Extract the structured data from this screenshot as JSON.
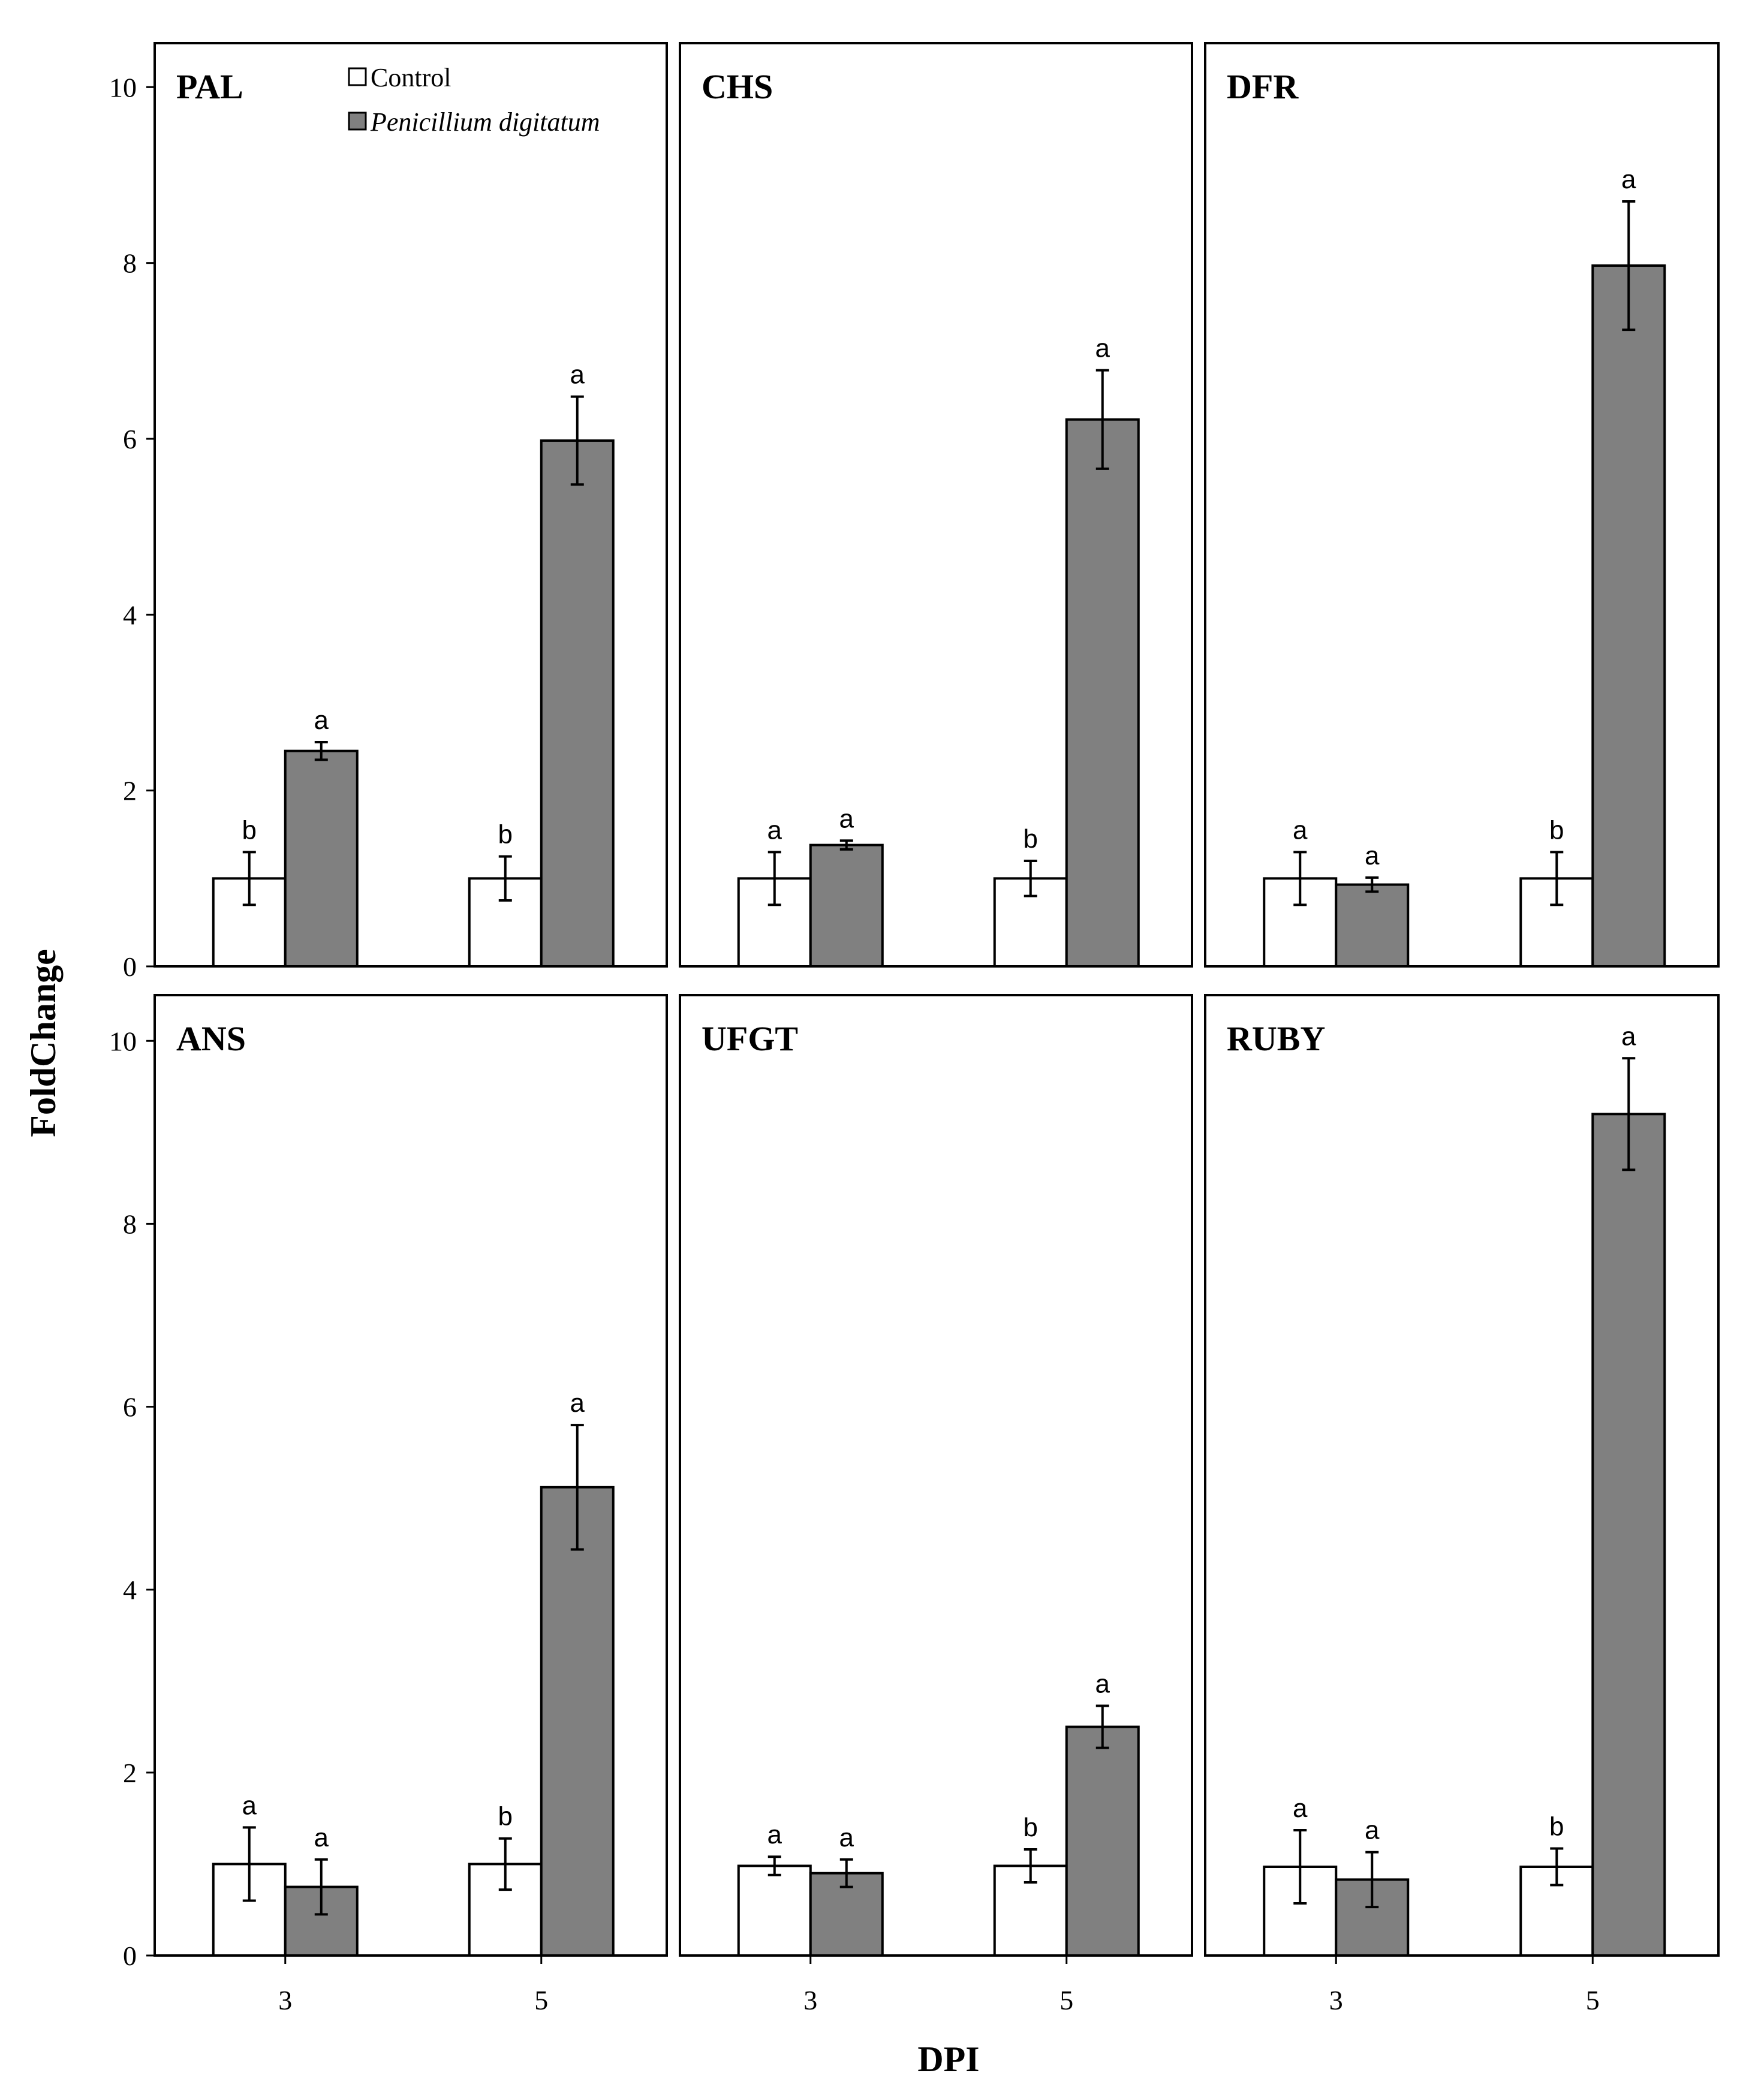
{
  "chart_data": {
    "type": "bar",
    "ylabel": "FoldChange",
    "xlabel": "DPI",
    "ylim": [
      0,
      10.5
    ],
    "yticks": [
      "0",
      "2",
      "4",
      "6",
      "8",
      "10"
    ],
    "categories": [
      "3",
      "5"
    ],
    "legend": {
      "position": "top-right of first panel",
      "entries": [
        {
          "label": "Control",
          "color": "#ffffff",
          "italic": false
        },
        {
          "label": "Penicillium digitatum",
          "color": "#808080",
          "italic": true
        }
      ]
    },
    "colors": {
      "control": "#ffffff",
      "treatment": "#808080",
      "stroke": "#000000"
    },
    "panels": [
      {
        "name": "PAL",
        "control": [
          1.0,
          1.0
        ],
        "control_err": [
          0.3,
          0.25
        ],
        "control_sig": [
          "b",
          "b"
        ],
        "treatment": [
          2.45,
          5.98
        ],
        "treatment_err": [
          0.1,
          0.5
        ],
        "treatment_sig": [
          "a",
          "a"
        ]
      },
      {
        "name": "CHS",
        "control": [
          1.0,
          1.0
        ],
        "control_err": [
          0.3,
          0.2
        ],
        "control_sig": [
          "a",
          "b"
        ],
        "treatment": [
          1.38,
          6.22
        ],
        "treatment_err": [
          0.05,
          0.56
        ],
        "treatment_sig": [
          "a",
          "a"
        ]
      },
      {
        "name": "DFR",
        "control": [
          1.0,
          1.0
        ],
        "control_err": [
          0.3,
          0.3
        ],
        "control_sig": [
          "a",
          "b"
        ],
        "treatment": [
          0.93,
          7.97
        ],
        "treatment_err": [
          0.08,
          0.73
        ],
        "treatment_sig": [
          "a",
          "a"
        ]
      },
      {
        "name": "ANS",
        "control": [
          1.0,
          1.0
        ],
        "control_err": [
          0.4,
          0.28
        ],
        "control_sig": [
          "a",
          "b"
        ],
        "treatment": [
          0.75,
          5.12
        ],
        "treatment_err": [
          0.3,
          0.68
        ],
        "treatment_sig": [
          "a",
          "a"
        ]
      },
      {
        "name": "UFGT",
        "control": [
          0.98,
          0.98
        ],
        "control_err": [
          0.1,
          0.18
        ],
        "control_sig": [
          "a",
          "b"
        ],
        "treatment": [
          0.9,
          2.5
        ],
        "treatment_err": [
          0.15,
          0.23
        ],
        "treatment_sig": [
          "a",
          "a"
        ]
      },
      {
        "name": "RUBY",
        "control": [
          0.97,
          0.97
        ],
        "control_err": [
          0.4,
          0.2
        ],
        "control_sig": [
          "a",
          "b"
        ],
        "treatment": [
          0.83,
          9.2
        ],
        "treatment_err": [
          0.3,
          0.61
        ],
        "treatment_sig": [
          "a",
          "a"
        ]
      }
    ]
  }
}
